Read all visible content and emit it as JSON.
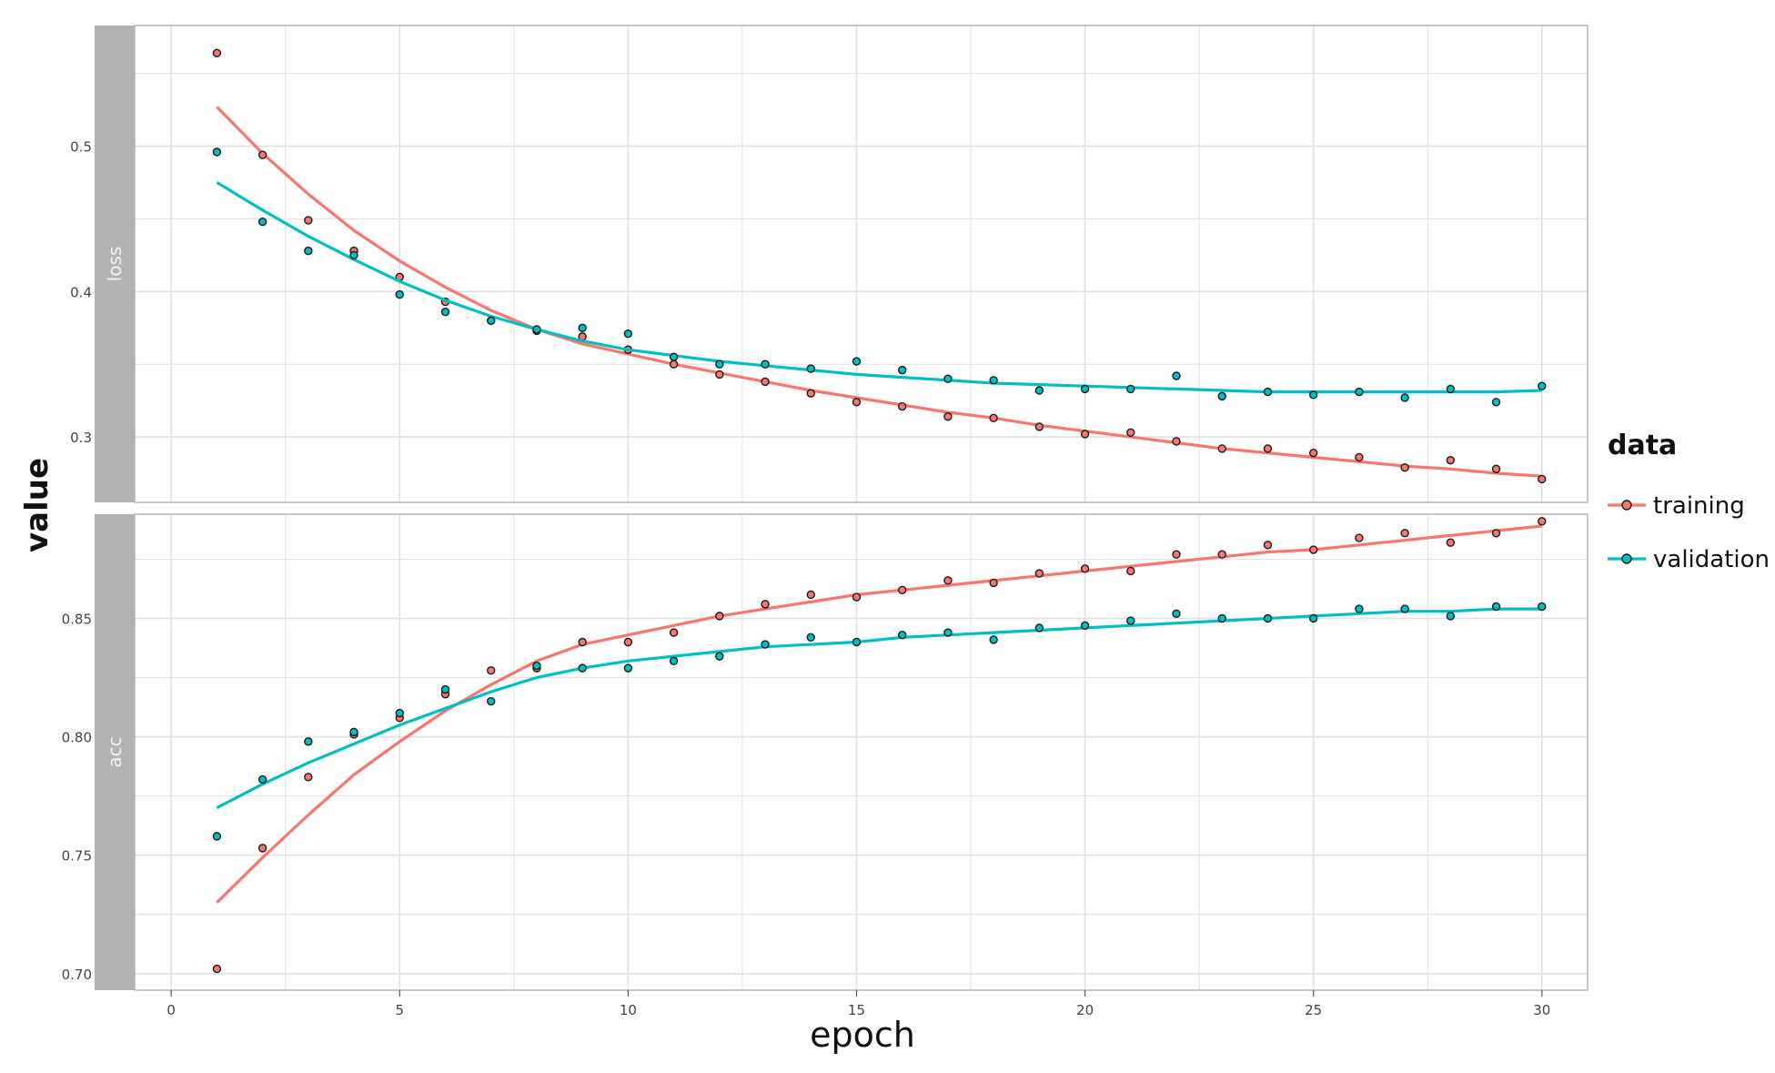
{
  "chart_data": {
    "type": "line",
    "x_label": "epoch",
    "y_label": "value",
    "x_range": [
      -0.8,
      31
    ],
    "x_ticks": [
      0,
      5,
      10,
      15,
      20,
      25,
      30
    ],
    "x_tick_labels": [
      "0",
      "5",
      "10",
      "15",
      "20",
      "25",
      "30"
    ],
    "grid": true,
    "legend": {
      "title": "data",
      "position": "right",
      "entries": [
        "training",
        "validation"
      ]
    },
    "colors": {
      "training": "#f8766d",
      "validation": "#00bfc4",
      "strip": "#b2b2b2",
      "grid": "#e0e0e0",
      "panel_border": "#b5b5b5"
    },
    "panels": [
      {
        "label": "loss",
        "y_range": [
          0.255,
          0.583
        ],
        "y_ticks": [
          0.3,
          0.4,
          0.5
        ],
        "y_tick_labels": [
          "0.3",
          "0.4",
          "0.5"
        ],
        "series": [
          {
            "name": "training",
            "points": [
              [
                1,
                0.564
              ],
              [
                2,
                0.494
              ],
              [
                3,
                0.449
              ],
              [
                4,
                0.428
              ],
              [
                5,
                0.41
              ],
              [
                6,
                0.393
              ],
              [
                7,
                0.38
              ],
              [
                8,
                0.373
              ],
              [
                9,
                0.369
              ],
              [
                10,
                0.36
              ],
              [
                11,
                0.35
              ],
              [
                12,
                0.343
              ],
              [
                13,
                0.338
              ],
              [
                14,
                0.33
              ],
              [
                15,
                0.324
              ],
              [
                16,
                0.321
              ],
              [
                17,
                0.314
              ],
              [
                18,
                0.313
              ],
              [
                19,
                0.307
              ],
              [
                20,
                0.302
              ],
              [
                21,
                0.303
              ],
              [
                22,
                0.297
              ],
              [
                23,
                0.292
              ],
              [
                24,
                0.292
              ],
              [
                25,
                0.289
              ],
              [
                26,
                0.286
              ],
              [
                27,
                0.279
              ],
              [
                28,
                0.284
              ],
              [
                29,
                0.278
              ],
              [
                30,
                0.271
              ]
            ],
            "smooth": [
              [
                1,
                0.527
              ],
              [
                2,
                0.495
              ],
              [
                3,
                0.467
              ],
              [
                4,
                0.442
              ],
              [
                5,
                0.421
              ],
              [
                6,
                0.403
              ],
              [
                7,
                0.387
              ],
              [
                8,
                0.374
              ],
              [
                9,
                0.364
              ],
              [
                10,
                0.357
              ],
              [
                11,
                0.35
              ],
              [
                12,
                0.344
              ],
              [
                13,
                0.338
              ],
              [
                14,
                0.332
              ],
              [
                15,
                0.327
              ],
              [
                16,
                0.322
              ],
              [
                17,
                0.317
              ],
              [
                18,
                0.313
              ],
              [
                19,
                0.308
              ],
              [
                20,
                0.304
              ],
              [
                21,
                0.3
              ],
              [
                22,
                0.296
              ],
              [
                23,
                0.292
              ],
              [
                24,
                0.289
              ],
              [
                25,
                0.286
              ],
              [
                26,
                0.283
              ],
              [
                27,
                0.28
              ],
              [
                28,
                0.278
              ],
              [
                29,
                0.275
              ],
              [
                30,
                0.273
              ]
            ]
          },
          {
            "name": "validation",
            "points": [
              [
                1,
                0.496
              ],
              [
                2,
                0.448
              ],
              [
                3,
                0.428
              ],
              [
                4,
                0.425
              ],
              [
                5,
                0.398
              ],
              [
                6,
                0.386
              ],
              [
                7,
                0.38
              ],
              [
                8,
                0.374
              ],
              [
                9,
                0.375
              ],
              [
                10,
                0.371
              ],
              [
                11,
                0.355
              ],
              [
                12,
                0.35
              ],
              [
                13,
                0.35
              ],
              [
                14,
                0.347
              ],
              [
                15,
                0.352
              ],
              [
                16,
                0.346
              ],
              [
                17,
                0.34
              ],
              [
                18,
                0.339
              ],
              [
                19,
                0.332
              ],
              [
                20,
                0.333
              ],
              [
                21,
                0.333
              ],
              [
                22,
                0.342
              ],
              [
                23,
                0.328
              ],
              [
                24,
                0.331
              ],
              [
                25,
                0.329
              ],
              [
                26,
                0.331
              ],
              [
                27,
                0.327
              ],
              [
                28,
                0.333
              ],
              [
                29,
                0.324
              ],
              [
                30,
                0.335
              ]
            ],
            "smooth": [
              [
                1,
                0.475
              ],
              [
                2,
                0.456
              ],
              [
                3,
                0.438
              ],
              [
                4,
                0.422
              ],
              [
                5,
                0.407
              ],
              [
                6,
                0.394
              ],
              [
                7,
                0.383
              ],
              [
                8,
                0.374
              ],
              [
                9,
                0.366
              ],
              [
                10,
                0.36
              ],
              [
                11,
                0.356
              ],
              [
                12,
                0.352
              ],
              [
                13,
                0.349
              ],
              [
                14,
                0.346
              ],
              [
                15,
                0.343
              ],
              [
                16,
                0.341
              ],
              [
                17,
                0.339
              ],
              [
                18,
                0.337
              ],
              [
                19,
                0.336
              ],
              [
                20,
                0.335
              ],
              [
                21,
                0.334
              ],
              [
                22,
                0.333
              ],
              [
                23,
                0.332
              ],
              [
                24,
                0.331
              ],
              [
                25,
                0.331
              ],
              [
                26,
                0.331
              ],
              [
                27,
                0.331
              ],
              [
                28,
                0.331
              ],
              [
                29,
                0.331
              ],
              [
                30,
                0.332
              ]
            ]
          }
        ]
      },
      {
        "label": "acc",
        "y_range": [
          0.693,
          0.894
        ],
        "y_ticks": [
          0.7,
          0.75,
          0.8,
          0.85
        ],
        "y_tick_labels": [
          "0.70",
          "0.75",
          "0.80",
          "0.85"
        ],
        "series": [
          {
            "name": "training",
            "points": [
              [
                1,
                0.702
              ],
              [
                2,
                0.753
              ],
              [
                3,
                0.783
              ],
              [
                4,
                0.801
              ],
              [
                5,
                0.808
              ],
              [
                6,
                0.818
              ],
              [
                7,
                0.828
              ],
              [
                8,
                0.829
              ],
              [
                9,
                0.84
              ],
              [
                10,
                0.84
              ],
              [
                11,
                0.844
              ],
              [
                12,
                0.851
              ],
              [
                13,
                0.856
              ],
              [
                14,
                0.86
              ],
              [
                15,
                0.859
              ],
              [
                16,
                0.862
              ],
              [
                17,
                0.866
              ],
              [
                18,
                0.865
              ],
              [
                19,
                0.869
              ],
              [
                20,
                0.871
              ],
              [
                21,
                0.87
              ],
              [
                22,
                0.877
              ],
              [
                23,
                0.877
              ],
              [
                24,
                0.881
              ],
              [
                25,
                0.879
              ],
              [
                26,
                0.884
              ],
              [
                27,
                0.886
              ],
              [
                28,
                0.882
              ],
              [
                29,
                0.886
              ],
              [
                30,
                0.891
              ]
            ],
            "smooth": [
              [
                1,
                0.73
              ],
              [
                2,
                0.749
              ],
              [
                3,
                0.767
              ],
              [
                4,
                0.784
              ],
              [
                5,
                0.798
              ],
              [
                6,
                0.811
              ],
              [
                7,
                0.822
              ],
              [
                8,
                0.832
              ],
              [
                9,
                0.839
              ],
              [
                10,
                0.843
              ],
              [
                11,
                0.847
              ],
              [
                12,
                0.851
              ],
              [
                13,
                0.854
              ],
              [
                14,
                0.857
              ],
              [
                15,
                0.86
              ],
              [
                16,
                0.862
              ],
              [
                17,
                0.864
              ],
              [
                18,
                0.866
              ],
              [
                19,
                0.868
              ],
              [
                20,
                0.87
              ],
              [
                21,
                0.872
              ],
              [
                22,
                0.874
              ],
              [
                23,
                0.876
              ],
              [
                24,
                0.878
              ],
              [
                25,
                0.879
              ],
              [
                26,
                0.881
              ],
              [
                27,
                0.883
              ],
              [
                28,
                0.885
              ],
              [
                29,
                0.887
              ],
              [
                30,
                0.889
              ]
            ]
          },
          {
            "name": "validation",
            "points": [
              [
                1,
                0.758
              ],
              [
                2,
                0.782
              ],
              [
                3,
                0.798
              ],
              [
                4,
                0.802
              ],
              [
                5,
                0.81
              ],
              [
                6,
                0.82
              ],
              [
                7,
                0.815
              ],
              [
                8,
                0.83
              ],
              [
                9,
                0.829
              ],
              [
                10,
                0.829
              ],
              [
                11,
                0.832
              ],
              [
                12,
                0.834
              ],
              [
                13,
                0.839
              ],
              [
                14,
                0.842
              ],
              [
                15,
                0.84
              ],
              [
                16,
                0.843
              ],
              [
                17,
                0.844
              ],
              [
                18,
                0.841
              ],
              [
                19,
                0.846
              ],
              [
                20,
                0.847
              ],
              [
                21,
                0.849
              ],
              [
                22,
                0.852
              ],
              [
                23,
                0.85
              ],
              [
                24,
                0.85
              ],
              [
                25,
                0.85
              ],
              [
                26,
                0.854
              ],
              [
                27,
                0.854
              ],
              [
                28,
                0.851
              ],
              [
                29,
                0.855
              ],
              [
                30,
                0.855
              ]
            ],
            "smooth": [
              [
                1,
                0.77
              ],
              [
                2,
                0.78
              ],
              [
                3,
                0.789
              ],
              [
                4,
                0.797
              ],
              [
                5,
                0.805
              ],
              [
                6,
                0.812
              ],
              [
                7,
                0.819
              ],
              [
                8,
                0.825
              ],
              [
                9,
                0.829
              ],
              [
                10,
                0.832
              ],
              [
                11,
                0.834
              ],
              [
                12,
                0.836
              ],
              [
                13,
                0.838
              ],
              [
                14,
                0.839
              ],
              [
                15,
                0.84
              ],
              [
                16,
                0.842
              ],
              [
                17,
                0.843
              ],
              [
                18,
                0.844
              ],
              [
                19,
                0.845
              ],
              [
                20,
                0.846
              ],
              [
                21,
                0.847
              ],
              [
                22,
                0.848
              ],
              [
                23,
                0.849
              ],
              [
                24,
                0.85
              ],
              [
                25,
                0.851
              ],
              [
                26,
                0.852
              ],
              [
                27,
                0.853
              ],
              [
                28,
                0.853
              ],
              [
                29,
                0.854
              ],
              [
                30,
                0.854
              ]
            ]
          }
        ]
      }
    ]
  }
}
